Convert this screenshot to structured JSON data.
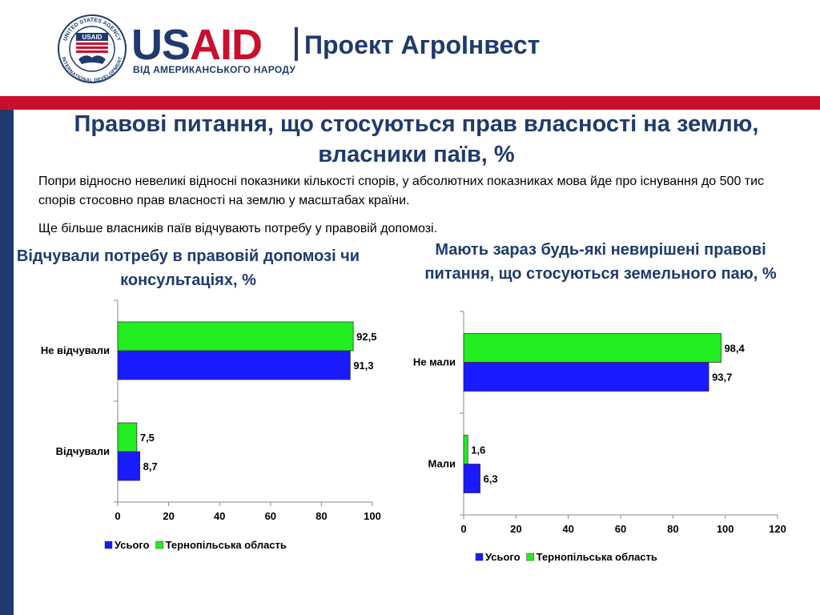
{
  "header": {
    "brand_us": "US",
    "brand_aid": "AID",
    "brand_tagline": "ВІД АМЕРИКАНСЬКОГО НАРОДУ",
    "seal_text_top": "UNITED STATES AGENCY",
    "seal_text_bottom": "INTERNATIONAL DEVELOPMENT",
    "seal_inner": "USAID",
    "project_name": "Проект АгроІнвест"
  },
  "slide": {
    "title": "Правові питання, що стосуються прав власності на землю, власники паїв, %",
    "paragraph_1": "Попри відносно невеликі відносні показники кількості спорів, у абсолютних показниках мова йде про існування до 500 тис спорів стосовно прав власності на землю у масштабах країни.",
    "paragraph_2": "Ще більше власників паїв відчувають потребу у правовій допомозі."
  },
  "colors": {
    "navy": "#1f3a6e",
    "red": "#c8102e",
    "series_total": "#1a1aff",
    "series_ternopil": "#22ee22"
  },
  "chart_data": [
    {
      "type": "bar",
      "orientation": "horizontal",
      "title": "Відчували потребу в правовій допомозі чи консультаціях, %",
      "categories": [
        "Не відчували",
        "Відчували"
      ],
      "series": [
        {
          "name": "Тернопільська область",
          "values": [
            92.5,
            7.5
          ],
          "labels": [
            "92,5",
            "7,5"
          ],
          "color": "#22ee22"
        },
        {
          "name": "Усього",
          "values": [
            91.3,
            8.7
          ],
          "labels": [
            "91,3",
            "8,7"
          ],
          "color": "#1a1aff"
        }
      ],
      "xlim": [
        0,
        100
      ],
      "xticks": [
        "0",
        "20",
        "40",
        "60",
        "80",
        "100"
      ],
      "legend": [
        "Усього",
        "Тернопільська область"
      ],
      "legend_position": "bottom"
    },
    {
      "type": "bar",
      "orientation": "horizontal",
      "title": "Мають зараз будь-які невирішені правові питання, що стосуються земельного паю, %",
      "categories": [
        "Не мали",
        "Мали"
      ],
      "series": [
        {
          "name": "Тернопільська область",
          "values": [
            98.4,
            1.6
          ],
          "labels": [
            "98,4",
            "1,6"
          ],
          "color": "#22ee22"
        },
        {
          "name": "Усього",
          "values": [
            93.7,
            6.3
          ],
          "labels": [
            "93,7",
            "6,3"
          ],
          "color": "#1a1aff"
        }
      ],
      "xlim": [
        0,
        120
      ],
      "xticks": [
        "0",
        "20",
        "40",
        "60",
        "80",
        "100",
        "120"
      ],
      "legend": [
        "Усього",
        "Тернопільська область"
      ],
      "legend_position": "bottom"
    }
  ]
}
